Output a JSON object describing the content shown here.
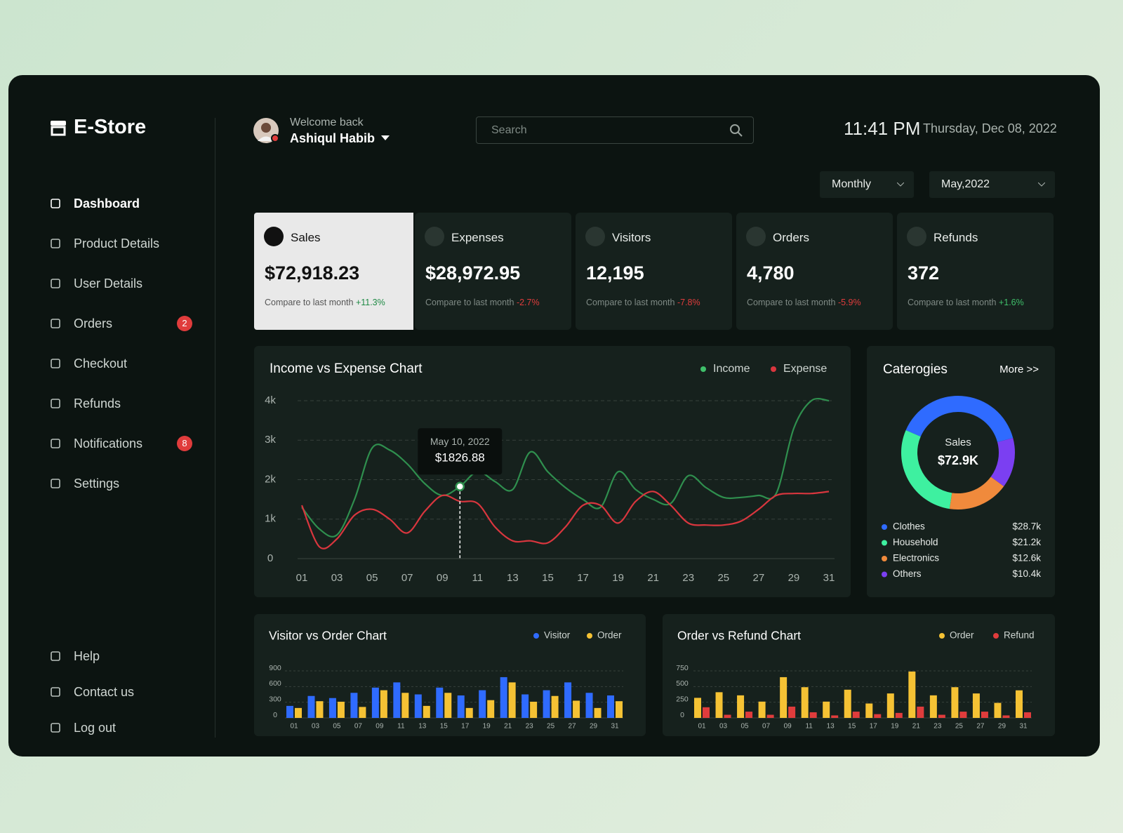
{
  "sidebar": {
    "brand": "E-Store",
    "nav": [
      {
        "label": "Dashboard"
      },
      {
        "label": "Product Details"
      },
      {
        "label": "User Details"
      },
      {
        "label": "Orders",
        "badge": 2
      },
      {
        "label": "Checkout"
      },
      {
        "label": "Refunds"
      },
      {
        "label": "Notifications",
        "badge": 8
      },
      {
        "label": "Settings"
      }
    ],
    "footer_nav": [
      "Help",
      "Contact us",
      "Log out"
    ]
  },
  "header": {
    "greeting": "Welcome back",
    "user": "Ashiqul Habib",
    "search_placeholder": "Search",
    "time": "11:41 PM",
    "date": "Thursday, Dec 08, 2022"
  },
  "filters": {
    "period": "Monthly",
    "month": "May,2022"
  },
  "stats": [
    {
      "label": "Sales",
      "value": "$72,918.23",
      "compare": "Compare to last month",
      "change": "+11.3%"
    },
    {
      "label": "Expenses",
      "value": "$28,972.95",
      "compare": "Compare to last month",
      "change": "-2.7%"
    },
    {
      "label": "Visitors",
      "value": "12,195",
      "compare": "Compare to last month",
      "change": "-7.8%"
    },
    {
      "label": "Orders",
      "value": "4,780",
      "compare": "Compare to last month",
      "change": "-5.9%"
    },
    {
      "label": "Refunds",
      "value": "372",
      "compare": "Compare to last month",
      "change": "+1.6%"
    }
  ],
  "income_chart": {
    "type": "line",
    "title": "Income vs Expense Chart",
    "x": [
      1,
      2,
      3,
      4,
      5,
      6,
      7,
      8,
      9,
      10,
      11,
      12,
      13,
      14,
      15,
      16,
      17,
      18,
      19,
      20,
      21,
      22,
      23,
      24,
      25,
      26,
      27,
      28,
      29,
      30,
      31
    ],
    "series": [
      {
        "name": "Income",
        "color": "#2f8f4e",
        "values": [
          1300,
          750,
          600,
          1500,
          2800,
          2750,
          2400,
          1900,
          1600,
          1826.88,
          2200,
          1950,
          1750,
          2700,
          2200,
          1800,
          1500,
          1300,
          2200,
          1750,
          1500,
          1400,
          2100,
          1800,
          1550,
          1550,
          1600,
          1650,
          3300,
          4000,
          4000
        ]
      },
      {
        "name": "Expense",
        "color": "#d9363e",
        "values": [
          1350,
          300,
          500,
          1100,
          1250,
          1000,
          650,
          1200,
          1600,
          1450,
          1400,
          800,
          450,
          450,
          400,
          800,
          1350,
          1350,
          900,
          1450,
          1700,
          1350,
          900,
          850,
          850,
          950,
          1250,
          1600,
          1650,
          1650,
          1700
        ]
      }
    ],
    "xlim": [
      1,
      31
    ],
    "xticks": [
      {
        "value": 1,
        "label": "01"
      },
      {
        "value": 3,
        "label": "03"
      },
      {
        "value": 5,
        "label": "05"
      },
      {
        "value": 7,
        "label": "07"
      },
      {
        "value": 9,
        "label": "09"
      },
      11,
      13,
      15,
      17,
      19,
      21,
      23,
      25,
      27,
      29,
      31
    ],
    "ylim": [
      0,
      4000
    ],
    "yticks": [
      0,
      {
        "value": 1000,
        "label": "1k"
      },
      {
        "value": 2000,
        "label": "2k"
      },
      {
        "value": 3000,
        "label": "3k"
      },
      {
        "value": 4000,
        "label": "4k"
      }
    ],
    "grid": true,
    "tooltip": {
      "x": 10,
      "y": 1826.88,
      "date_label": "May 10, 2022",
      "value_label": "$1826.88"
    }
  },
  "categories_chart": {
    "type": "donut",
    "title": "Caterogies",
    "link": "More >>",
    "center_label": "Sales",
    "center_value": "$72.9K",
    "categories": [
      "Clothes",
      "Household",
      "Electronics",
      "Others"
    ],
    "values": [
      28.7,
      21.2,
      12.6,
      10.4
    ],
    "value_labels": [
      "$28.7k",
      "$21.2k",
      "$12.6k",
      "$10.4k"
    ],
    "colors": [
      "#2f6bff",
      "#3ef0a0",
      "#f08a3c",
      "#7b3ff2"
    ]
  },
  "visitor_chart": {
    "type": "bar",
    "title": "Visitor vs Order Chart",
    "categories": [
      "01",
      "03",
      "05",
      "07",
      "09",
      "11",
      "13",
      "15",
      "17",
      "19",
      "21",
      "23",
      "25",
      "27",
      "29",
      "31"
    ],
    "series": [
      {
        "name": "Visitor",
        "color": "#2f6bff",
        "values": [
          230,
          420,
          380,
          480,
          580,
          680,
          450,
          580,
          430,
          530,
          780,
          450,
          530,
          680,
          480,
          430
        ]
      },
      {
        "name": "Order",
        "color": "#f5c234",
        "values": [
          190,
          320,
          310,
          210,
          530,
          480,
          230,
          480,
          190,
          340,
          680,
          310,
          420,
          330,
          190,
          320
        ]
      }
    ],
    "ylim": [
      0,
      900
    ],
    "yticks": [
      0,
      300,
      600,
      900
    ],
    "grid": true
  },
  "refund_chart": {
    "type": "bar",
    "title": "Order vs Refund Chart",
    "categories": [
      "01",
      "03",
      "05",
      "07",
      "09",
      "11",
      "13",
      "15",
      "17",
      "19",
      "21",
      "23",
      "25",
      "27",
      "29",
      "31"
    ],
    "series": [
      {
        "name": "Order",
        "color": "#f5c234",
        "values": [
          320,
          410,
          360,
          260,
          650,
          490,
          260,
          450,
          230,
          390,
          740,
          360,
          490,
          390,
          240,
          440
        ]
      },
      {
        "name": "Refund",
        "color": "#e03c3c",
        "values": [
          170,
          50,
          100,
          50,
          180,
          90,
          40,
          100,
          60,
          80,
          180,
          50,
          100,
          100,
          40,
          90
        ]
      }
    ],
    "ylim": [
      0,
      750
    ],
    "yticks": [
      0,
      250,
      500,
      750
    ],
    "grid": true
  }
}
